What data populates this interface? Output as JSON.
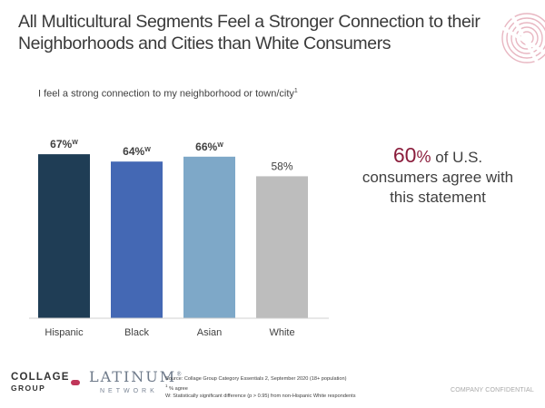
{
  "title": "All Multicultural Segments Feel a Stronger Connection to their Neighborhoods and Cities than White Consumers",
  "subtitle": {
    "text": "I feel a strong connection to my neighborhood or town/city",
    "footnote_mark": "1"
  },
  "chart_data": {
    "type": "bar",
    "categories": [
      "Hispanic",
      "Black",
      "Asian",
      "White"
    ],
    "values": [
      67,
      64,
      66,
      58
    ],
    "value_labels": [
      "67%",
      "64%",
      "66%",
      "58%"
    ],
    "sig_marks": [
      "W",
      "W",
      "W",
      ""
    ],
    "bold_labels": [
      true,
      true,
      true,
      false
    ],
    "colors": [
      "#1f3d55",
      "#4468b4",
      "#7ea8c8",
      "#bdbdbd"
    ],
    "ylim": [
      0,
      100
    ],
    "xlabel": "",
    "ylabel": ""
  },
  "stat": {
    "value": "60",
    "unit": "%",
    "text_line1": "of U.S.",
    "text_line2": "consumers agree with",
    "text_line3": "this statement",
    "color": "#8b1d3c"
  },
  "logos": {
    "collage_line1": "COLLAGE",
    "collage_line2": "GROUP",
    "latinum": "LATINUM",
    "latinum_mark": "®",
    "network": "NETWORK"
  },
  "footnotes": {
    "source": "Source: Collage Group Category Essentials 2, September 2020 (18+ population)",
    "note1_mark": "1",
    "note1": " % agree",
    "note2": "W: Statistically significant difference (p > 0.95) from non-Hispanic White respondents"
  },
  "confidential": "COMPANY CONFIDENTIAL"
}
